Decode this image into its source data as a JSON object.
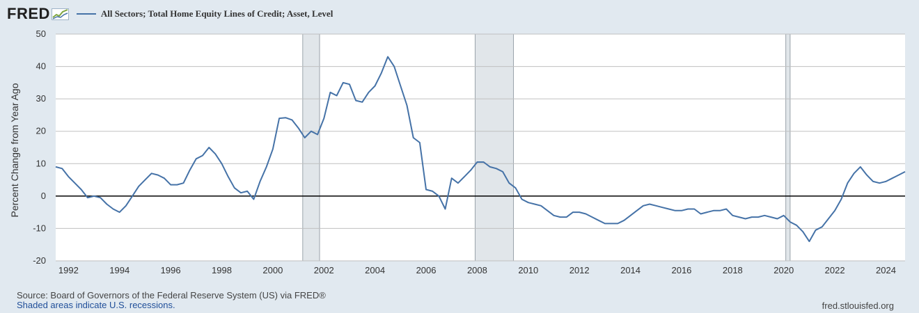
{
  "header": {
    "logo_text": "FRED",
    "series_title": "All Sectors; Total Home Equity Lines of Credit; Asset, Level"
  },
  "footer": {
    "source": "Board of Governors of the Federal Reserve System (US) via FRED®",
    "source_prefix": "Source: ",
    "shaded_note": "Shaded areas indicate U.S. recessions.",
    "url": "fred.stlouisfed.org"
  },
  "colors": {
    "line": "#4572a7",
    "recession": "#e1e6ea",
    "background": "#e1e9f0",
    "plot_background": "#ffffff",
    "grid": "#c0c0c0",
    "zero_line": "#000000"
  },
  "chart_data": {
    "type": "line",
    "ylabel": "Percent Change from Year Ago",
    "xlim": [
      1991.5,
      2024.75
    ],
    "ylim": [
      -20,
      50
    ],
    "y_ticks": [
      -20,
      -10,
      0,
      10,
      20,
      30,
      40,
      50
    ],
    "x_ticks": [
      1992,
      1994,
      1996,
      1998,
      2000,
      2002,
      2004,
      2006,
      2008,
      2010,
      2012,
      2014,
      2016,
      2018,
      2020,
      2022,
      2024
    ],
    "grid": true,
    "recessions": [
      [
        2001.17,
        2001.83
      ],
      [
        2007.92,
        2009.42
      ],
      [
        2020.08,
        2020.25
      ]
    ],
    "series": [
      {
        "values": [
          [
            1991.5,
            9.0
          ],
          [
            1991.75,
            8.5
          ],
          [
            1992.0,
            6.0
          ],
          [
            1992.25,
            4.0
          ],
          [
            1992.5,
            2.0
          ],
          [
            1992.75,
            -0.5
          ],
          [
            1993.0,
            0.0
          ],
          [
            1993.25,
            -0.5
          ],
          [
            1993.5,
            -2.5
          ],
          [
            1993.75,
            -4.0
          ],
          [
            1994.0,
            -5.0
          ],
          [
            1994.25,
            -3.0
          ],
          [
            1994.5,
            0.0
          ],
          [
            1994.75,
            3.0
          ],
          [
            1995.0,
            5.0
          ],
          [
            1995.25,
            7.0
          ],
          [
            1995.5,
            6.5
          ],
          [
            1995.75,
            5.5
          ],
          [
            1996.0,
            3.5
          ],
          [
            1996.25,
            3.5
          ],
          [
            1996.5,
            4.0
          ],
          [
            1996.75,
            8.0
          ],
          [
            1997.0,
            11.5
          ],
          [
            1997.25,
            12.5
          ],
          [
            1997.5,
            15.0
          ],
          [
            1997.75,
            13.0
          ],
          [
            1998.0,
            10.0
          ],
          [
            1998.25,
            6.0
          ],
          [
            1998.5,
            2.5
          ],
          [
            1998.75,
            1.0
          ],
          [
            1999.0,
            1.5
          ],
          [
            1999.25,
            -1.0
          ],
          [
            1999.5,
            4.5
          ],
          [
            1999.75,
            9.0
          ],
          [
            2000.0,
            14.5
          ],
          [
            2000.25,
            24.0
          ],
          [
            2000.5,
            24.2
          ],
          [
            2000.75,
            23.5
          ],
          [
            2001.0,
            21.0
          ],
          [
            2001.25,
            18.0
          ],
          [
            2001.5,
            20.0
          ],
          [
            2001.75,
            19.0
          ],
          [
            2002.0,
            24.0
          ],
          [
            2002.25,
            32.0
          ],
          [
            2002.5,
            31.0
          ],
          [
            2002.75,
            35.0
          ],
          [
            2003.0,
            34.5
          ],
          [
            2003.25,
            29.5
          ],
          [
            2003.5,
            29.0
          ],
          [
            2003.75,
            32.0
          ],
          [
            2004.0,
            34.0
          ],
          [
            2004.25,
            38.0
          ],
          [
            2004.5,
            43.0
          ],
          [
            2004.75,
            40.0
          ],
          [
            2005.0,
            34.0
          ],
          [
            2005.25,
            28.0
          ],
          [
            2005.5,
            18.0
          ],
          [
            2005.75,
            16.5
          ],
          [
            2006.0,
            2.0
          ],
          [
            2006.25,
            1.5
          ],
          [
            2006.5,
            0.0
          ],
          [
            2006.75,
            -4.0
          ],
          [
            2007.0,
            5.5
          ],
          [
            2007.25,
            4.0
          ],
          [
            2007.5,
            6.0
          ],
          [
            2007.75,
            8.0
          ],
          [
            2008.0,
            10.5
          ],
          [
            2008.25,
            10.5
          ],
          [
            2008.5,
            9.0
          ],
          [
            2008.75,
            8.5
          ],
          [
            2009.0,
            7.5
          ],
          [
            2009.25,
            4.0
          ],
          [
            2009.5,
            2.5
          ],
          [
            2009.75,
            -1.0
          ],
          [
            2010.0,
            -2.0
          ],
          [
            2010.25,
            -2.5
          ],
          [
            2010.5,
            -3.0
          ],
          [
            2010.75,
            -4.5
          ],
          [
            2011.0,
            -6.0
          ],
          [
            2011.25,
            -6.5
          ],
          [
            2011.5,
            -6.5
          ],
          [
            2011.75,
            -5.0
          ],
          [
            2012.0,
            -5.0
          ],
          [
            2012.25,
            -5.5
          ],
          [
            2012.5,
            -6.5
          ],
          [
            2012.75,
            -7.5
          ],
          [
            2013.0,
            -8.5
          ],
          [
            2013.25,
            -8.5
          ],
          [
            2013.5,
            -8.5
          ],
          [
            2013.75,
            -7.5
          ],
          [
            2014.0,
            -6.0
          ],
          [
            2014.25,
            -4.5
          ],
          [
            2014.5,
            -3.0
          ],
          [
            2014.75,
            -2.5
          ],
          [
            2015.0,
            -3.0
          ],
          [
            2015.25,
            -3.5
          ],
          [
            2015.5,
            -4.0
          ],
          [
            2015.75,
            -4.5
          ],
          [
            2016.0,
            -4.5
          ],
          [
            2016.25,
            -4.0
          ],
          [
            2016.5,
            -4.0
          ],
          [
            2016.75,
            -5.5
          ],
          [
            2017.0,
            -5.0
          ],
          [
            2017.25,
            -4.5
          ],
          [
            2017.5,
            -4.5
          ],
          [
            2017.75,
            -4.0
          ],
          [
            2018.0,
            -6.0
          ],
          [
            2018.25,
            -6.5
          ],
          [
            2018.5,
            -7.0
          ],
          [
            2018.75,
            -6.5
          ],
          [
            2019.0,
            -6.5
          ],
          [
            2019.25,
            -6.0
          ],
          [
            2019.5,
            -6.5
          ],
          [
            2019.75,
            -7.0
          ],
          [
            2020.0,
            -6.0
          ],
          [
            2020.25,
            -8.0
          ],
          [
            2020.5,
            -9.0
          ],
          [
            2020.75,
            -11.0
          ],
          [
            2021.0,
            -14.0
          ],
          [
            2021.25,
            -10.5
          ],
          [
            2021.5,
            -9.5
          ],
          [
            2021.75,
            -7.0
          ],
          [
            2022.0,
            -4.5
          ],
          [
            2022.25,
            -1.0
          ],
          [
            2022.5,
            4.0
          ],
          [
            2022.75,
            7.0
          ],
          [
            2023.0,
            9.0
          ],
          [
            2023.25,
            6.5
          ],
          [
            2023.5,
            4.5
          ],
          [
            2023.75,
            4.0
          ],
          [
            2024.0,
            4.5
          ],
          [
            2024.25,
            5.5
          ],
          [
            2024.5,
            6.5
          ],
          [
            2024.75,
            7.5
          ]
        ]
      }
    ]
  }
}
